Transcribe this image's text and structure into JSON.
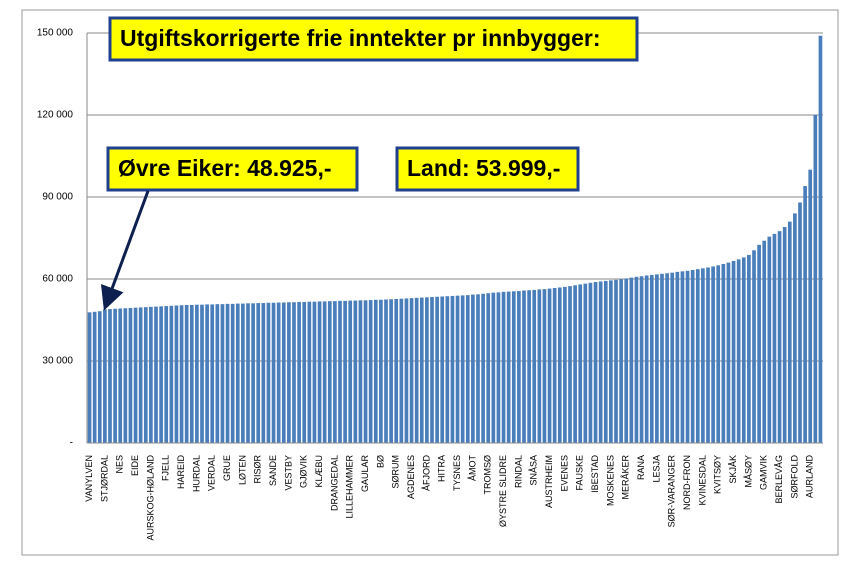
{
  "chart_data": {
    "type": "bar",
    "title": "Utgiftskorrigerte frie inntekter pr innbygger:",
    "annotations": [
      "Øvre Eiker: 48.925,-",
      "Land: 53.999,-"
    ],
    "color": "#4a7ebb",
    "grid": true,
    "ylim": [
      0,
      150000
    ],
    "yticks": [
      {
        "value": 0,
        "label": "-"
      },
      {
        "value": 30000,
        "label": "30 000"
      },
      {
        "value": 60000,
        "label": "60 000"
      },
      {
        "value": 90000,
        "label": "90 000"
      },
      {
        "value": 120000,
        "label": "120 000"
      },
      {
        "value": 150000,
        "label": "150 000"
      }
    ],
    "categories": [
      "VANYLVEN",
      null,
      null,
      "STJØRDAL",
      null,
      null,
      "NES",
      null,
      null,
      "EIDE",
      null,
      null,
      "AURSKOG-HØLAND",
      null,
      null,
      "FJELL",
      null,
      null,
      "HAREID",
      null,
      null,
      "HURDAL",
      null,
      null,
      "VERDAL",
      null,
      null,
      "GRUE",
      null,
      null,
      "LØTEN",
      null,
      null,
      "RISØR",
      null,
      null,
      "SANDE",
      null,
      null,
      "VESTBY",
      null,
      null,
      "GJØVIK",
      null,
      null,
      "KLÆBU",
      null,
      null,
      "DRANGEDAL",
      null,
      null,
      "LILLEHAMMER",
      null,
      null,
      "GAULAR",
      null,
      null,
      "BØ",
      null,
      null,
      "SØRUM",
      null,
      null,
      "AGDENES",
      null,
      null,
      "ÅFJORD",
      null,
      null,
      "HITRA",
      null,
      null,
      "TYSNES",
      null,
      null,
      "ÅMOT",
      null,
      null,
      "TROMSØ",
      null,
      null,
      "ØYSTRE SLIDRE",
      null,
      null,
      "RINDAL",
      null,
      null,
      "SNÅSA",
      null,
      null,
      "AUSTRHEIM",
      null,
      null,
      "EVENES",
      null,
      null,
      "FAUSKE",
      null,
      null,
      "IBESTAD",
      null,
      null,
      "MOSKENES",
      null,
      null,
      "MERÅKER",
      null,
      null,
      "RANA",
      null,
      null,
      "LESJA",
      null,
      null,
      "SØR-VARANGER",
      null,
      null,
      "NORD-FRON",
      null,
      null,
      "KVINESDAL",
      null,
      null,
      "KVITSØY",
      null,
      null,
      "SKJÅK",
      null,
      null,
      "MÅSØY",
      null,
      null,
      "GAMVIK",
      null,
      null,
      "BERLEVÅG",
      null,
      null,
      "SØRFOLD",
      null,
      null,
      "AURLAND",
      null,
      null
    ],
    "values": [
      47800,
      48000,
      48200,
      48900,
      49000,
      49100,
      49200,
      49300,
      49400,
      49500,
      49600,
      49700,
      49800,
      49900,
      50000,
      50100,
      50200,
      50300,
      50400,
      50500,
      50500,
      50600,
      50600,
      50700,
      50700,
      50800,
      50800,
      50900,
      50900,
      51000,
      51000,
      51100,
      51100,
      51200,
      51200,
      51300,
      51300,
      51400,
      51400,
      51500,
      51500,
      51600,
      51600,
      51700,
      51700,
      51800,
      51800,
      51900,
      51900,
      52000,
      52000,
      52100,
      52100,
      52200,
      52200,
      52300,
      52400,
      52400,
      52500,
      52600,
      52700,
      52800,
      52900,
      53000,
      53100,
      53200,
      53300,
      53400,
      53500,
      53600,
      53700,
      53800,
      53900,
      54000,
      54100,
      54300,
      54400,
      54600,
      54800,
      55000,
      55100,
      55300,
      55400,
      55500,
      55600,
      55800,
      55900,
      56000,
      56200,
      56300,
      56500,
      56700,
      56900,
      57100,
      57400,
      57700,
      58000,
      58300,
      58600,
      58900,
      59100,
      59300,
      59500,
      59700,
      59900,
      60200,
      60500,
      60800,
      61000,
      61300,
      61500,
      61700,
      61900,
      62100,
      62300,
      62600,
      62800,
      63000,
      63300,
      63600,
      63900,
      64200,
      64600,
      65000,
      65500,
      66000,
      66600,
      67200,
      67900,
      68800,
      70500,
      72500,
      74000,
      75500,
      76500,
      77500,
      79000,
      81000,
      84000,
      88000,
      94000,
      100000,
      120000,
      149000
    ]
  }
}
